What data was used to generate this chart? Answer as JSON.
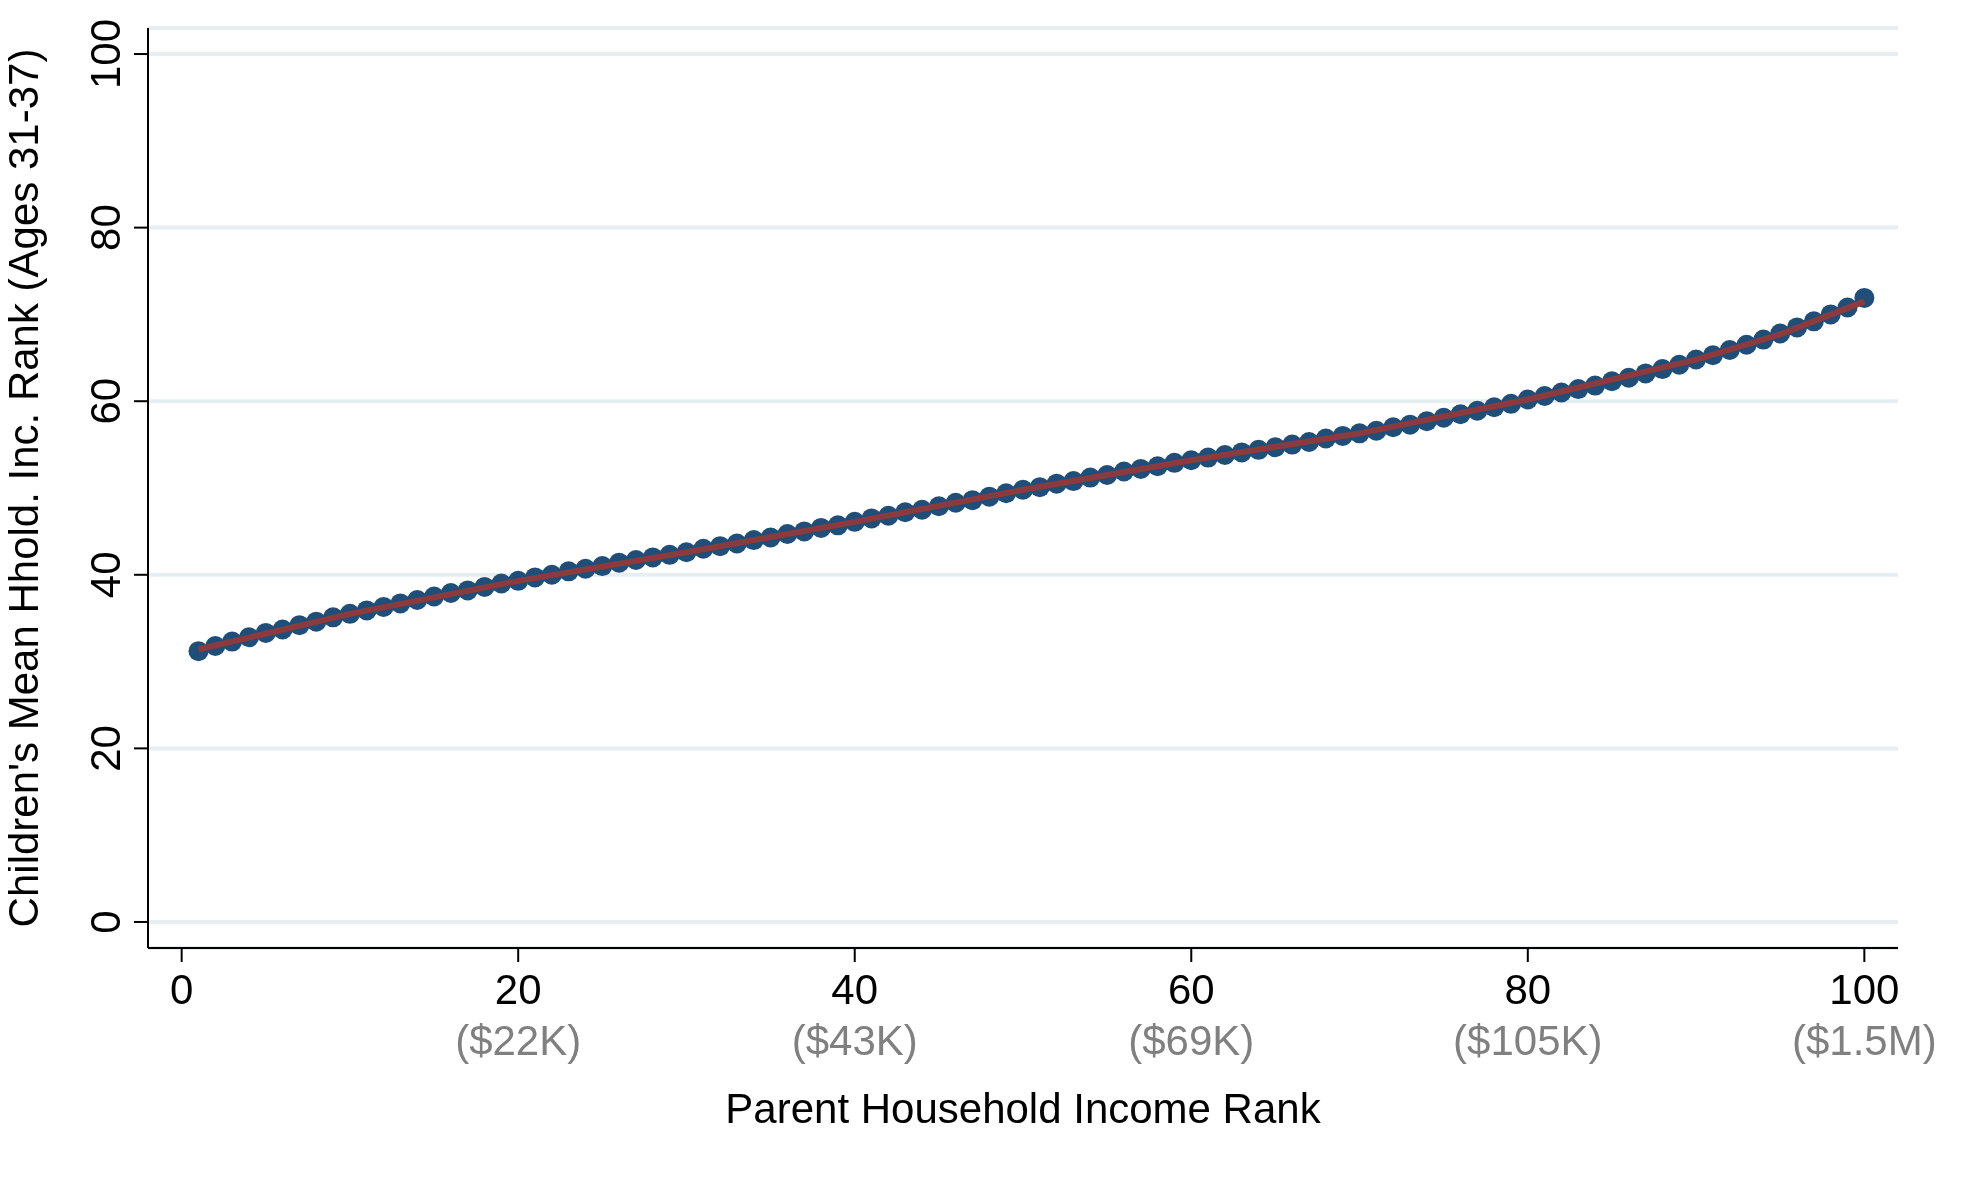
{
  "chart_data": {
    "type": "scatter",
    "xlabel": "Parent Household Income Rank",
    "ylabel": "Children's Mean Hhold. Inc. Rank (Ages 31-37)",
    "xlim": [
      -2,
      102
    ],
    "ylim": [
      -3,
      103
    ],
    "xticks": [
      0,
      20,
      40,
      60,
      80,
      100
    ],
    "annotations": [
      "($22K)",
      "($43K)",
      "($69K)",
      "($105K)",
      "($1.5M)"
    ],
    "yticks": [
      0,
      20,
      40,
      60,
      80,
      100
    ],
    "grid": "y",
    "legend": false,
    "series": [
      {
        "marker": "circle",
        "color": "#1f4e79",
        "x": [
          1,
          2,
          3,
          4,
          5,
          6,
          7,
          8,
          9,
          10,
          11,
          12,
          13,
          14,
          15,
          16,
          17,
          18,
          19,
          20,
          21,
          22,
          23,
          24,
          25,
          26,
          27,
          28,
          29,
          30,
          31,
          32,
          33,
          34,
          35,
          36,
          37,
          38,
          39,
          40,
          41,
          42,
          43,
          44,
          45,
          46,
          47,
          48,
          49,
          50,
          51,
          52,
          53,
          54,
          55,
          56,
          57,
          58,
          59,
          60,
          61,
          62,
          63,
          64,
          65,
          66,
          67,
          68,
          69,
          70,
          71,
          72,
          73,
          74,
          75,
          76,
          77,
          78,
          79,
          80,
          81,
          82,
          83,
          84,
          85,
          86,
          87,
          88,
          89,
          90,
          91,
          92,
          93,
          94,
          95,
          96,
          97,
          98,
          99,
          100
        ],
        "values": [
          31.2,
          31.8,
          32.3,
          32.8,
          33.3,
          33.7,
          34.2,
          34.6,
          35.1,
          35.5,
          35.9,
          36.3,
          36.7,
          37.1,
          37.5,
          37.9,
          38.2,
          38.6,
          39.0,
          39.3,
          39.7,
          40.0,
          40.4,
          40.7,
          41.0,
          41.4,
          41.7,
          42.0,
          42.3,
          42.6,
          43.0,
          43.3,
          43.6,
          44.0,
          44.3,
          44.7,
          45.0,
          45.4,
          45.7,
          46.1,
          46.5,
          46.8,
          47.2,
          47.5,
          47.9,
          48.3,
          48.6,
          49.0,
          49.4,
          49.8,
          50.1,
          50.5,
          50.8,
          51.2,
          51.5,
          51.9,
          52.2,
          52.5,
          52.9,
          53.2,
          53.5,
          53.8,
          54.1,
          54.4,
          54.7,
          55.0,
          55.3,
          55.7,
          56.0,
          56.3,
          56.6,
          57.0,
          57.3,
          57.7,
          58.1,
          58.5,
          58.9,
          59.3,
          59.7,
          60.2,
          60.6,
          61.0,
          61.4,
          61.8,
          62.3,
          62.7,
          63.2,
          63.7,
          64.2,
          64.8,
          65.3,
          65.9,
          66.5,
          67.1,
          67.8,
          68.5,
          69.2,
          70.0,
          70.8,
          71.9
        ]
      },
      {
        "type": "line",
        "marker": "none",
        "color": "#8b3a3e",
        "line_style": "solid",
        "x": [
          1,
          10,
          20,
          30,
          40,
          50,
          60,
          70,
          80,
          90,
          95,
          100
        ],
        "values": [
          31.4,
          35.5,
          39.3,
          42.6,
          46.1,
          49.8,
          53.2,
          56.3,
          60.2,
          64.8,
          67.7,
          71.5
        ]
      }
    ]
  }
}
